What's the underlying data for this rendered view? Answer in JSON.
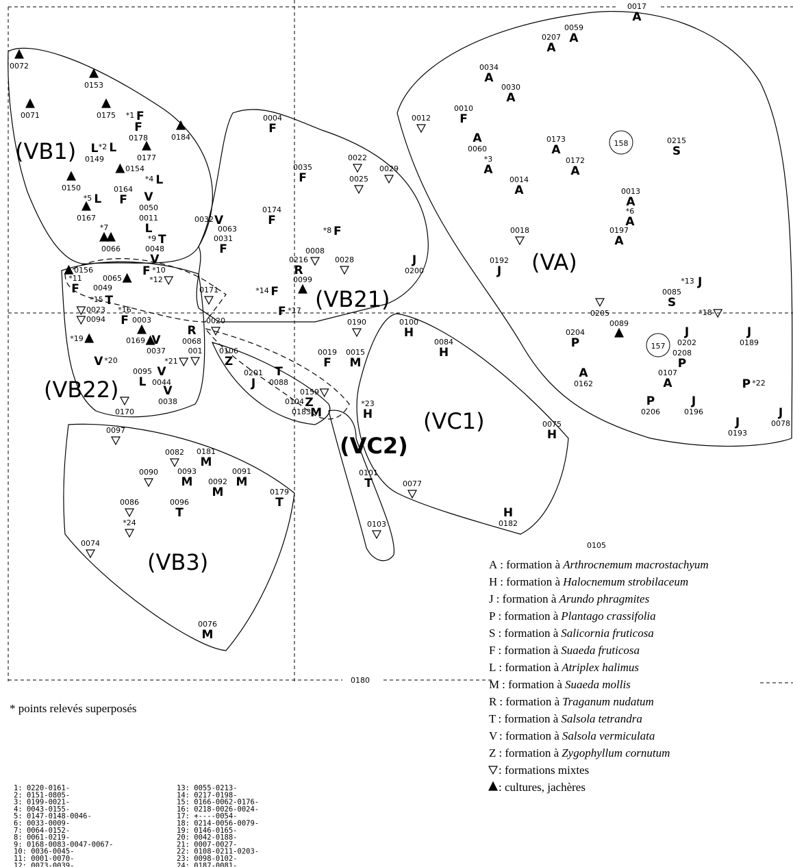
{
  "points": [
    {
      "code": "0072"
    },
    {
      "code": "0153"
    },
    {
      "code": "0071"
    },
    {
      "code": "0175"
    },
    {
      "code": "*1",
      "letter": "F"
    },
    {
      "code": "0178",
      "letter": "F"
    },
    {
      "code": "0184"
    },
    {
      "code": "0177"
    },
    {
      "code": "*2",
      "letter": "L"
    },
    {
      "code": "0149",
      "letter": "L"
    },
    {
      "code": "0154"
    },
    {
      "code": "*4",
      "letter": "L"
    },
    {
      "code": "0164",
      "letter": "F"
    },
    {
      "code": "0150"
    },
    {
      "code": "*5",
      "letter": "L"
    },
    {
      "code": "0050",
      "letter": "V"
    },
    {
      "code": "0011",
      "letter": "L"
    },
    {
      "code": "0167"
    },
    {
      "code": "*7"
    },
    {
      "code": "*9",
      "letter": "T"
    },
    {
      "code": "0066"
    },
    {
      "code": "0048",
      "letter": "V"
    },
    {
      "code": "0032",
      "letter": "V"
    },
    {
      "code": "0063"
    },
    {
      "code": "0031",
      "letter": "F"
    },
    {
      "code": "0156"
    },
    {
      "code": "*11",
      "letter": "F"
    },
    {
      "code": "0065"
    },
    {
      "code": "*10",
      "letter": "F"
    },
    {
      "code": "*12"
    },
    {
      "code": "0049"
    },
    {
      "code": "*15",
      "letter": "T"
    },
    {
      "code": "0023"
    },
    {
      "code": "*16",
      "letter": "F"
    },
    {
      "code": "0094"
    },
    {
      "code": "0004",
      "letter": "F"
    },
    {
      "code": "0035",
      "letter": "F"
    },
    {
      "code": "0174",
      "letter": "F"
    },
    {
      "code": "*8",
      "letter": "F"
    },
    {
      "code": "0008"
    },
    {
      "code": "0028"
    },
    {
      "code": "0216",
      "letter": "R"
    },
    {
      "code": "0099"
    },
    {
      "code": "*14",
      "letter": "F"
    },
    {
      "code": "*17",
      "letter": "F"
    },
    {
      "code": "0022"
    },
    {
      "code": "0025"
    },
    {
      "code": "0029"
    },
    {
      "code": "0200",
      "letter": "J"
    },
    {
      "code": "0171"
    },
    {
      "code": "0020"
    },
    {
      "code": "0190"
    },
    {
      "code": "0003"
    },
    {
      "code": "0068",
      "letter": "R"
    },
    {
      "code": "0169"
    },
    {
      "code": "*19"
    },
    {
      "code": "0037",
      "letter": "V"
    },
    {
      "code": "*20",
      "letter": "V"
    },
    {
      "code": "*21"
    },
    {
      "code": "001"
    },
    {
      "code": "0106",
      "letter": "Z"
    },
    {
      "code": "0201",
      "letter": "J"
    },
    {
      "code": "0088",
      "letter": "T"
    },
    {
      "code": "0019",
      "letter": "F"
    },
    {
      "code": "0015",
      "letter": "M"
    },
    {
      "code": "0095",
      "letter": "L"
    },
    {
      "code": "0044",
      "letter": "V"
    },
    {
      "code": "0038",
      "letter": "V"
    },
    {
      "code": "0170"
    },
    {
      "code": "*23",
      "letter": "H"
    },
    {
      "code": "0159"
    },
    {
      "code": "0104",
      "letter": "Z"
    },
    {
      "code": "0183",
      "letter": "M"
    },
    {
      "code": "0100",
      "letter": "H"
    },
    {
      "code": "0084",
      "letter": "H"
    },
    {
      "code": "0075",
      "letter": "H"
    },
    {
      "code": "0077"
    },
    {
      "code": "0101",
      "letter": "T"
    },
    {
      "code": "0103"
    },
    {
      "code": "0182",
      "letter": "H"
    },
    {
      "code": "0097"
    },
    {
      "code": "0082"
    },
    {
      "code": "0181",
      "letter": "M"
    },
    {
      "code": "0090"
    },
    {
      "code": "0093",
      "letter": "M"
    },
    {
      "code": "0092",
      "letter": "M"
    },
    {
      "code": "0091",
      "letter": "M"
    },
    {
      "code": "0179",
      "letter": "T"
    },
    {
      "code": "0086"
    },
    {
      "code": "*24"
    },
    {
      "code": "0096",
      "letter": "T"
    },
    {
      "code": "0074"
    },
    {
      "code": "0076",
      "letter": "M"
    },
    {
      "code": "0017",
      "letter": "A"
    },
    {
      "code": "0059",
      "letter": "A"
    },
    {
      "code": "0207",
      "letter": "A"
    },
    {
      "code": "0034",
      "letter": "A"
    },
    {
      "code": "0030",
      "letter": "A"
    },
    {
      "code": "0010",
      "letter": "F"
    },
    {
      "code": "0012"
    },
    {
      "code": "0060",
      "letter": "A"
    },
    {
      "code": "*3",
      "letter": "A"
    },
    {
      "code": "0173",
      "letter": "A"
    },
    {
      "code": "0172",
      "letter": "A"
    },
    {
      "code": "0014",
      "letter": "A"
    },
    {
      "code": "0215",
      "letter": "S"
    },
    {
      "code": "0013",
      "letter": "A"
    },
    {
      "code": "*6",
      "letter": "A"
    },
    {
      "code": "0197",
      "letter": "A"
    },
    {
      "code": "0018"
    },
    {
      "code": "0192",
      "letter": "J"
    },
    {
      "code": "*13",
      "letter": "J"
    },
    {
      "code": "0085",
      "letter": "S"
    },
    {
      "code": "*18"
    },
    {
      "code": "0205"
    },
    {
      "code": "0089"
    },
    {
      "code": "0204",
      "letter": "P"
    },
    {
      "code": "0202",
      "letter": "J"
    },
    {
      "code": "0208",
      "letter": "P"
    },
    {
      "code": "0107",
      "letter": "A"
    },
    {
      "code": "0162",
      "letter": "A"
    },
    {
      "code": "0189",
      "letter": "J"
    },
    {
      "code": "*22",
      "letter": "P"
    },
    {
      "code": "0206",
      "letter": "P"
    },
    {
      "code": "0196",
      "letter": "J"
    },
    {
      "code": "0193",
      "letter": "J"
    },
    {
      "code": "0078",
      "letter": "J"
    },
    {
      "code": "0105"
    }
  ],
  "circled": [
    "158",
    "157"
  ],
  "groups": [
    "(VB1)",
    "(VB21)",
    "(VA)",
    "(VB22)",
    "(VC1)",
    "(VC2)",
    "(VB3)"
  ],
  "axis_labels": [
    "0180"
  ],
  "legend": [
    {
      "key": "A",
      "label": ": formation à",
      "species": "Arthrocnemum macrostachyum"
    },
    {
      "key": "H",
      "label": ": formation à",
      "species": "Halocnemum strobilaceum"
    },
    {
      "key": "J",
      "label": ": formation à",
      "species": "Arundo phragmites"
    },
    {
      "key": "P",
      "label": ": formation à",
      "species": "Plantago crassifolia"
    },
    {
      "key": "S",
      "label": ": formation à",
      "species": "Salicornia fruticosa"
    },
    {
      "key": "F",
      "label": ": formation à",
      "species": "Suaeda fruticosa"
    },
    {
      "key": "L",
      "label": ": formation à",
      "species": "Atriplex halimus"
    },
    {
      "key": "M",
      "label": ": formation à",
      "species": "Suaeda mollis"
    },
    {
      "key": "R",
      "label": ": formation à",
      "species": "Traganum nudatum"
    },
    {
      "key": "T",
      "label": ": formation à",
      "species": "Salsola tetrandra"
    },
    {
      "key": "V",
      "label": ": formation à",
      "species": "Salsola vermiculata"
    },
    {
      "key": "Z",
      "label": ": formation à",
      "species": "Zygophyllum cornutum"
    },
    {
      "label": ": formations mixtes"
    },
    {
      "label": ": cultures, jachères"
    }
  ],
  "footnote": "* points relevés superposés",
  "overlaps": [
    "1: 0220-0161-",
    "2: 0151-0805-",
    "3: 0199-0021-",
    "4: 0043-0155-",
    "5: 0147-0148-0046-",
    "6: 0033-0009-",
    "7: 0064-0152-",
    "8: 0061-0219-",
    "9: 0168-0083-0047-0067-",
    "10: 0036-0045-",
    "11: 0001-0070-",
    "12: 0073-0039-",
    "13: 0055-0213-",
    "14: 0217-0198-",
    "15: 0166-0062-0176-",
    "16: 0218-0026-0024-",
    "17: +----0054-",
    "18: 0214-0056-0079-",
    "19: 0146-0165-",
    "20: 0042-0188-",
    "21: 0007-0027-",
    "22: 0108-0211-0203-",
    "23: 0098-0102-",
    "24: 0187-0081-"
  ]
}
